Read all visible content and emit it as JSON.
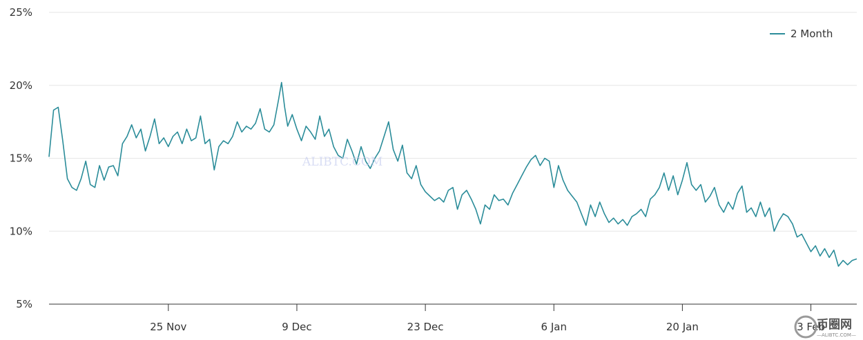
{
  "chart_data": {
    "type": "line",
    "ylim": [
      5,
      25
    ],
    "y_ticks": [
      "25%",
      "20%",
      "15%",
      "10%",
      "5%"
    ],
    "y_tick_values": [
      25,
      20,
      15,
      10,
      5
    ],
    "x_range": [
      "2024-11-12",
      "2025-02-08"
    ],
    "x_ticks": [
      {
        "label": "25 Nov",
        "date": "2024-11-25"
      },
      {
        "label": "9 Dec",
        "date": "2024-12-09"
      },
      {
        "label": "23 Dec",
        "date": "2024-12-23"
      },
      {
        "label": "6 Jan",
        "date": "2025-01-06"
      },
      {
        "label": "20 Jan",
        "date": "2025-01-20"
      },
      {
        "label": "3 Feb",
        "date": "2025-02-03"
      }
    ],
    "grid": "horizontal",
    "legend": {
      "position": "top-right"
    },
    "series": [
      {
        "name": "2 Month",
        "color": "#2a8c99",
        "points": [
          [
            "2024-11-12",
            15.1
          ],
          [
            "2024-11-12",
            18.3
          ],
          [
            "2024-11-13",
            18.5
          ],
          [
            "2024-11-13",
            16.2
          ],
          [
            "2024-11-14",
            13.6
          ],
          [
            "2024-11-14",
            13.0
          ],
          [
            "2024-11-15",
            12.8
          ],
          [
            "2024-11-15",
            13.6
          ],
          [
            "2024-11-16",
            14.8
          ],
          [
            "2024-11-16",
            13.2
          ],
          [
            "2024-11-17",
            13.0
          ],
          [
            "2024-11-17",
            14.5
          ],
          [
            "2024-11-18",
            13.5
          ],
          [
            "2024-11-18",
            14.4
          ],
          [
            "2024-11-19",
            14.5
          ],
          [
            "2024-11-19",
            13.8
          ],
          [
            "2024-11-20",
            16.0
          ],
          [
            "2024-11-20",
            16.5
          ],
          [
            "2024-11-21",
            17.3
          ],
          [
            "2024-11-21",
            16.4
          ],
          [
            "2024-11-22",
            17.0
          ],
          [
            "2024-11-22",
            15.5
          ],
          [
            "2024-11-23",
            16.5
          ],
          [
            "2024-11-23",
            17.7
          ],
          [
            "2024-11-24",
            16.0
          ],
          [
            "2024-11-24",
            16.4
          ],
          [
            "2024-11-25",
            15.8
          ],
          [
            "2024-11-25",
            16.5
          ],
          [
            "2024-11-26",
            16.8
          ],
          [
            "2024-11-26",
            16.0
          ],
          [
            "2024-11-27",
            17.0
          ],
          [
            "2024-11-27",
            16.2
          ],
          [
            "2024-11-28",
            16.4
          ],
          [
            "2024-11-28",
            17.9
          ],
          [
            "2024-11-29",
            16.0
          ],
          [
            "2024-11-29",
            16.3
          ],
          [
            "2024-11-30",
            14.2
          ],
          [
            "2024-11-30",
            15.8
          ],
          [
            "2024-12-01",
            16.2
          ],
          [
            "2024-12-01",
            16.0
          ],
          [
            "2024-12-02",
            16.5
          ],
          [
            "2024-12-02",
            17.5
          ],
          [
            "2024-12-03",
            16.8
          ],
          [
            "2024-12-03",
            17.2
          ],
          [
            "2024-12-04",
            17.0
          ],
          [
            "2024-12-04",
            17.4
          ],
          [
            "2024-12-05",
            18.4
          ],
          [
            "2024-12-05",
            17.0
          ],
          [
            "2024-12-06",
            16.8
          ],
          [
            "2024-12-06",
            17.3
          ],
          [
            "2024-12-07",
            19.0
          ],
          [
            "2024-12-07",
            20.2
          ],
          [
            "2024-12-07",
            18.5
          ],
          [
            "2024-12-08",
            17.2
          ],
          [
            "2024-12-08",
            18.0
          ],
          [
            "2024-12-09",
            17.0
          ],
          [
            "2024-12-09",
            16.2
          ],
          [
            "2024-12-10",
            17.2
          ],
          [
            "2024-12-10",
            16.8
          ],
          [
            "2024-12-11",
            16.3
          ],
          [
            "2024-12-11",
            17.9
          ],
          [
            "2024-12-12",
            16.5
          ],
          [
            "2024-12-12",
            17.0
          ],
          [
            "2024-12-13",
            15.8
          ],
          [
            "2024-12-13",
            15.2
          ],
          [
            "2024-12-14",
            15.0
          ],
          [
            "2024-12-14",
            16.3
          ],
          [
            "2024-12-15",
            15.5
          ],
          [
            "2024-12-15",
            14.6
          ],
          [
            "2024-12-16",
            15.8
          ],
          [
            "2024-12-16",
            14.8
          ],
          [
            "2024-12-17",
            14.3
          ],
          [
            "2024-12-17",
            15.0
          ],
          [
            "2024-12-18",
            15.5
          ],
          [
            "2024-12-18",
            16.5
          ],
          [
            "2024-12-19",
            17.5
          ],
          [
            "2024-12-19",
            15.6
          ],
          [
            "2024-12-20",
            14.8
          ],
          [
            "2024-12-20",
            15.9
          ],
          [
            "2024-12-21",
            14.0
          ],
          [
            "2024-12-21",
            13.6
          ],
          [
            "2024-12-22",
            14.5
          ],
          [
            "2024-12-22",
            13.2
          ],
          [
            "2024-12-23",
            12.7
          ],
          [
            "2024-12-23",
            12.4
          ],
          [
            "2024-12-24",
            12.1
          ],
          [
            "2024-12-24",
            12.3
          ],
          [
            "2024-12-25",
            12.0
          ],
          [
            "2024-12-25",
            12.8
          ],
          [
            "2024-12-26",
            13.0
          ],
          [
            "2024-12-26",
            11.5
          ],
          [
            "2024-12-27",
            12.5
          ],
          [
            "2024-12-27",
            12.8
          ],
          [
            "2024-12-28",
            12.2
          ],
          [
            "2024-12-28",
            11.5
          ],
          [
            "2024-12-29",
            10.5
          ],
          [
            "2024-12-29",
            11.8
          ],
          [
            "2024-12-30",
            11.5
          ],
          [
            "2024-12-30",
            12.5
          ],
          [
            "2024-12-31",
            12.1
          ],
          [
            "2024-12-31",
            12.2
          ],
          [
            "2025-01-01",
            11.8
          ],
          [
            "2025-01-01",
            12.6
          ],
          [
            "2025-01-02",
            13.2
          ],
          [
            "2025-01-02",
            13.8
          ],
          [
            "2025-01-03",
            14.4
          ],
          [
            "2025-01-03",
            14.9
          ],
          [
            "2025-01-04",
            15.2
          ],
          [
            "2025-01-04",
            14.5
          ],
          [
            "2025-01-05",
            15.0
          ],
          [
            "2025-01-05",
            14.8
          ],
          [
            "2025-01-06",
            13.0
          ],
          [
            "2025-01-06",
            14.5
          ],
          [
            "2025-01-07",
            13.5
          ],
          [
            "2025-01-07",
            12.8
          ],
          [
            "2025-01-08",
            12.4
          ],
          [
            "2025-01-08",
            12.0
          ],
          [
            "2025-01-09",
            11.2
          ],
          [
            "2025-01-09",
            10.4
          ],
          [
            "2025-01-10",
            11.8
          ],
          [
            "2025-01-10",
            11.0
          ],
          [
            "2025-01-11",
            12.0
          ],
          [
            "2025-01-11",
            11.2
          ],
          [
            "2025-01-12",
            10.6
          ],
          [
            "2025-01-12",
            10.9
          ],
          [
            "2025-01-13",
            10.5
          ],
          [
            "2025-01-13",
            10.8
          ],
          [
            "2025-01-14",
            10.4
          ],
          [
            "2025-01-14",
            11.0
          ],
          [
            "2025-01-15",
            11.2
          ],
          [
            "2025-01-15",
            11.5
          ],
          [
            "2025-01-16",
            11.0
          ],
          [
            "2025-01-16",
            12.2
          ],
          [
            "2025-01-17",
            12.5
          ],
          [
            "2025-01-17",
            13.0
          ],
          [
            "2025-01-18",
            14.0
          ],
          [
            "2025-01-18",
            12.8
          ],
          [
            "2025-01-19",
            13.8
          ],
          [
            "2025-01-19",
            12.5
          ],
          [
            "2025-01-20",
            13.5
          ],
          [
            "2025-01-20",
            14.7
          ],
          [
            "2025-01-21",
            13.2
          ],
          [
            "2025-01-21",
            12.8
          ],
          [
            "2025-01-22",
            13.2
          ],
          [
            "2025-01-22",
            12.0
          ],
          [
            "2025-01-23",
            12.4
          ],
          [
            "2025-01-23",
            13.0
          ],
          [
            "2025-01-24",
            11.8
          ],
          [
            "2025-01-24",
            11.3
          ],
          [
            "2025-01-25",
            12.0
          ],
          [
            "2025-01-25",
            11.5
          ],
          [
            "2025-01-26",
            12.6
          ],
          [
            "2025-01-26",
            13.1
          ],
          [
            "2025-01-27",
            11.3
          ],
          [
            "2025-01-27",
            11.6
          ],
          [
            "2025-01-28",
            11.0
          ],
          [
            "2025-01-28",
            12.0
          ],
          [
            "2025-01-29",
            11.0
          ],
          [
            "2025-01-29",
            11.6
          ],
          [
            "2025-01-30",
            10.0
          ],
          [
            "2025-01-30",
            10.7
          ],
          [
            "2025-01-31",
            11.2
          ],
          [
            "2025-01-31",
            11.0
          ],
          [
            "2025-02-01",
            10.5
          ],
          [
            "2025-02-01",
            9.6
          ],
          [
            "2025-02-02",
            9.8
          ],
          [
            "2025-02-02",
            9.2
          ],
          [
            "2025-02-03",
            8.6
          ],
          [
            "2025-02-03",
            9.0
          ],
          [
            "2025-02-04",
            8.3
          ],
          [
            "2025-02-04",
            8.8
          ],
          [
            "2025-02-05",
            8.2
          ],
          [
            "2025-02-05",
            8.7
          ],
          [
            "2025-02-06",
            7.6
          ],
          [
            "2025-02-06",
            8.0
          ],
          [
            "2025-02-07",
            7.7
          ],
          [
            "2025-02-07",
            8.0
          ],
          [
            "2025-02-08",
            8.1
          ]
        ]
      }
    ]
  },
  "watermark": "ALIBTC.COM",
  "logo": {
    "main": "币圈网",
    "sub": "—ALIBTC.COM—"
  }
}
